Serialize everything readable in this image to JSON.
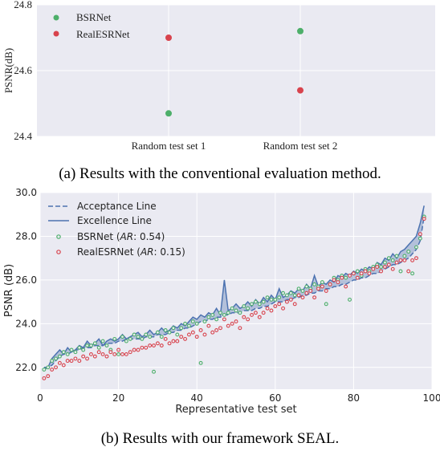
{
  "chart_data": [
    {
      "type": "scatter",
      "caption": "(a) Results with the conventional evaluation method.",
      "ylabel": "PSNR(dB)",
      "xlabel": "",
      "categories": [
        "Random test set 1",
        "Random test set 2"
      ],
      "ylim": [
        24.4,
        24.8
      ],
      "yticks": [
        "24.4",
        "24.6",
        "24.8"
      ],
      "grid": true,
      "legend_position": "top-left",
      "series": [
        {
          "name": "BSRNet",
          "color": "#4daf6a",
          "values": [
            24.47,
            24.72
          ]
        },
        {
          "name": "RealESRNet",
          "color": "#d8434d",
          "values": [
            24.7,
            24.54
          ]
        }
      ]
    },
    {
      "type": "line",
      "caption": "(b) Results with our framework SEAL.",
      "xlabel": "Representative test set",
      "ylabel": "PSNR (dB)",
      "xlim": [
        0,
        100
      ],
      "ylim": [
        21.0,
        30.0
      ],
      "xticks": [
        "0",
        "20",
        "40",
        "60",
        "80",
        "100"
      ],
      "yticks": [
        "22.0",
        "24.0",
        "26.0",
        "28.0",
        "30.0"
      ],
      "grid": true,
      "legend_position": "top-left",
      "legend": {
        "acceptance": "Acceptance Line",
        "excellence": "Excellence Line",
        "bsr_name": "BSRNet (",
        "bsr_ar": "AR",
        "bsr_val": ": 0.54)",
        "real_name": "RealESRNet (",
        "real_ar": "AR",
        "real_val": ": 0.15)"
      },
      "series": [
        {
          "name": "Acceptance Line",
          "color": "#4c72b0",
          "values": [
            21.9,
            22.0,
            22.1,
            22.3,
            22.5,
            22.6,
            22.6,
            22.7,
            22.8,
            22.8,
            22.9,
            22.9,
            22.9,
            23.0,
            23.0,
            23.0,
            23.1,
            23.1,
            23.1,
            23.2,
            23.2,
            23.3,
            23.3,
            23.3,
            23.3,
            23.3,
            23.4,
            23.4,
            23.4,
            23.5,
            23.5,
            23.5,
            23.6,
            23.6,
            23.7,
            23.7,
            23.8,
            23.8,
            23.9,
            24.0,
            24.1,
            24.1,
            24.2,
            24.2,
            24.3,
            24.3,
            24.4,
            24.4,
            24.5,
            24.5,
            24.5,
            24.6,
            24.6,
            24.6,
            24.7,
            24.7,
            24.8,
            24.8,
            24.9,
            25.0,
            25.0,
            25.0,
            25.1,
            25.1,
            25.2,
            25.2,
            25.3,
            25.3,
            25.4,
            25.4,
            25.5,
            25.5,
            25.6,
            25.6,
            25.7,
            25.7,
            25.8,
            25.8,
            25.9,
            26.0,
            26.0,
            26.1,
            26.1,
            26.2,
            26.3,
            26.3,
            26.4,
            26.5,
            26.6,
            26.7,
            26.7,
            26.8,
            26.9,
            27.0,
            27.2,
            27.4,
            27.8,
            28.9
          ]
        },
        {
          "name": "Excellence Line",
          "color": "#4c72b0",
          "values": [
            22.0,
            22.0,
            22.4,
            22.6,
            22.8,
            22.6,
            22.9,
            22.7,
            22.8,
            23.0,
            22.9,
            23.2,
            23.0,
            23.1,
            23.3,
            23.0,
            23.2,
            23.3,
            23.2,
            23.3,
            23.5,
            23.3,
            23.4,
            23.5,
            23.6,
            23.4,
            23.5,
            23.7,
            23.5,
            23.6,
            23.8,
            23.6,
            23.7,
            23.9,
            23.8,
            24.0,
            23.9,
            24.1,
            24.3,
            24.2,
            24.4,
            24.3,
            24.5,
            24.4,
            24.7,
            24.4,
            26.0,
            24.6,
            24.7,
            24.9,
            24.7,
            24.8,
            25.0,
            24.8,
            25.1,
            24.9,
            25.2,
            25.0,
            25.3,
            25.1,
            25.6,
            25.2,
            25.3,
            25.5,
            25.4,
            25.6,
            25.5,
            25.8,
            25.6,
            26.2,
            25.7,
            25.9,
            25.8,
            26.0,
            25.9,
            26.2,
            26.1,
            26.3,
            26.2,
            26.4,
            26.3,
            26.5,
            26.4,
            26.6,
            26.5,
            26.8,
            26.7,
            27.0,
            26.9,
            27.2,
            27.0,
            27.3,
            27.4,
            27.6,
            27.8,
            28.0,
            28.6,
            29.4
          ]
        },
        {
          "name": "BSRNet",
          "type": "scatter",
          "color": "#4daf6a",
          "values": [
            21.9,
            22.0,
            22.3,
            22.4,
            22.5,
            22.7,
            22.6,
            22.8,
            22.7,
            22.9,
            22.8,
            23.0,
            23.0,
            23.1,
            22.9,
            23.2,
            23.0,
            22.8,
            23.3,
            22.6,
            23.4,
            23.2,
            23.3,
            23.5,
            23.4,
            23.3,
            23.5,
            23.4,
            21.8,
            23.6,
            23.4,
            23.7,
            23.6,
            23.8,
            23.5,
            23.8,
            24.0,
            23.9,
            24.1,
            24.0,
            22.2,
            24.1,
            24.3,
            24.4,
            24.2,
            24.5,
            24.4,
            24.5,
            24.7,
            24.6,
            24.5,
            24.8,
            24.7,
            24.9,
            25.0,
            24.9,
            25.0,
            25.2,
            25.1,
            25.1,
            25.2,
            25.4,
            25.3,
            25.4,
            25.3,
            25.6,
            25.5,
            25.7,
            25.6,
            25.8,
            25.7,
            25.9,
            24.9,
            25.8,
            26.1,
            26.0,
            26.2,
            26.1,
            25.1,
            26.3,
            26.4,
            26.2,
            26.5,
            26.4,
            26.6,
            26.7,
            26.6,
            26.8,
            27.0,
            26.9,
            27.1,
            26.4,
            27.1,
            27.3,
            26.3,
            27.5,
            27.9,
            28.9
          ]
        },
        {
          "name": "RealESRNet",
          "type": "scatter",
          "color": "#d8434d",
          "values": [
            21.5,
            21.6,
            21.9,
            22.0,
            22.2,
            22.1,
            22.3,
            22.3,
            22.4,
            22.3,
            22.5,
            22.4,
            22.6,
            22.5,
            22.7,
            22.6,
            22.5,
            22.7,
            22.6,
            22.8,
            22.6,
            22.6,
            22.7,
            22.8,
            22.8,
            22.9,
            22.9,
            23.0,
            23.0,
            23.1,
            23.0,
            23.3,
            23.1,
            23.2,
            23.2,
            23.4,
            23.3,
            23.5,
            23.6,
            23.4,
            23.7,
            23.5,
            23.9,
            23.6,
            23.7,
            23.8,
            24.2,
            23.9,
            24.0,
            24.1,
            23.8,
            24.3,
            24.2,
            24.4,
            24.5,
            24.3,
            24.5,
            24.7,
            24.6,
            24.8,
            24.9,
            24.7,
            25.0,
            25.1,
            24.9,
            25.3,
            25.2,
            25.4,
            25.5,
            25.2,
            25.6,
            25.7,
            25.5,
            25.8,
            26.0,
            25.9,
            26.1,
            25.7,
            26.2,
            26.3,
            26.1,
            26.3,
            26.4,
            26.3,
            26.5,
            26.6,
            26.4,
            26.6,
            26.7,
            26.5,
            26.8,
            26.9,
            26.9,
            26.4,
            26.9,
            27.0,
            28.1,
            28.8
          ]
        }
      ]
    }
  ]
}
